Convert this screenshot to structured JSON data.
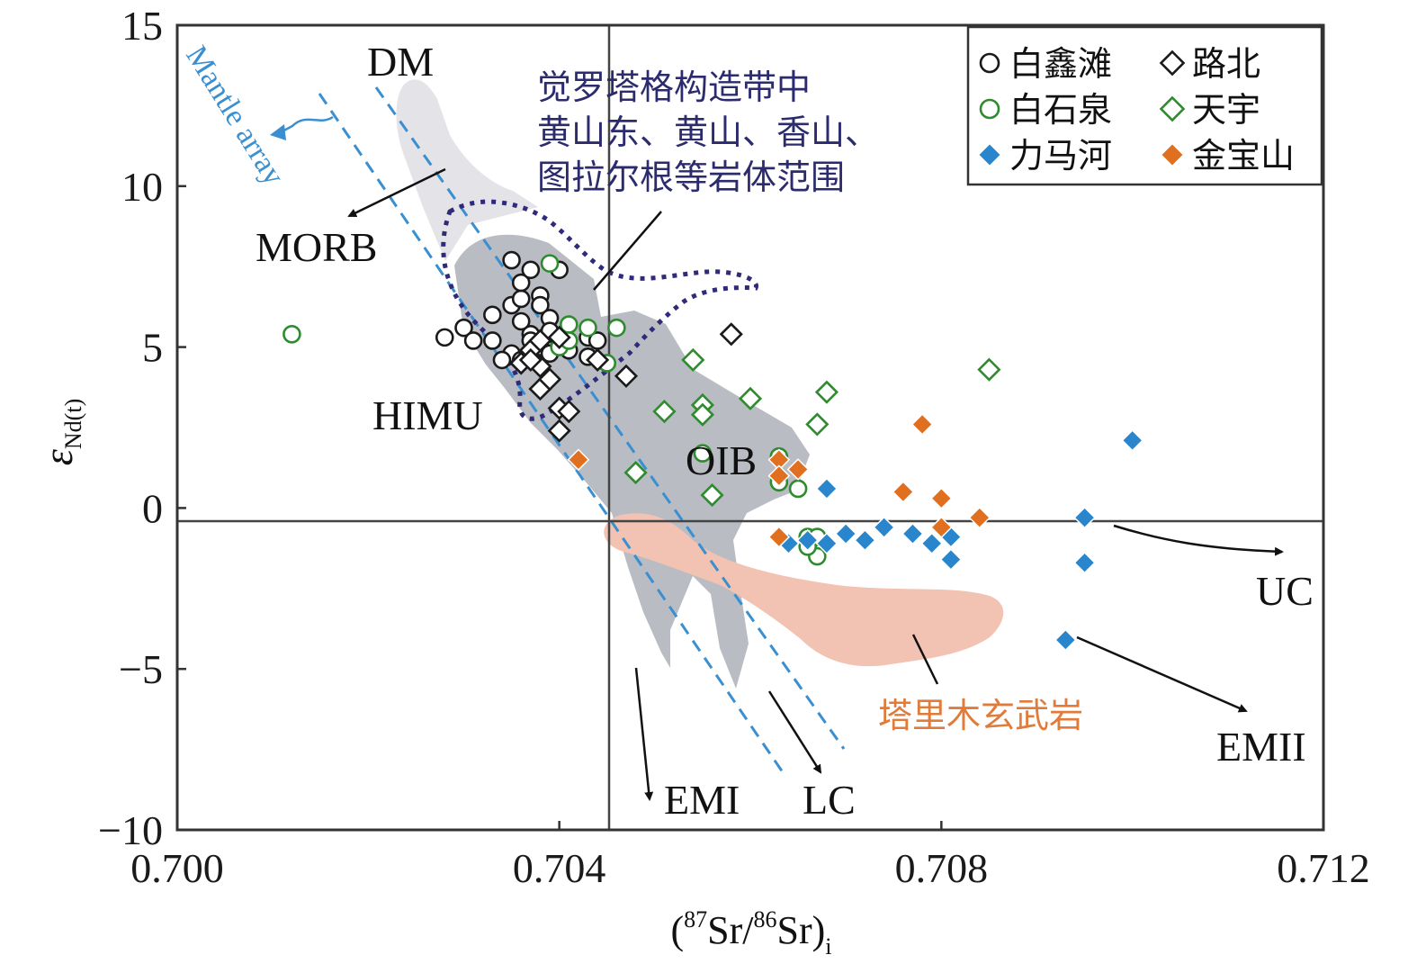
{
  "chart_data": {
    "type": "scatter",
    "xlabel": {
      "open": "(",
      "sup1": "87",
      "mid": "Sr/",
      "sup2": "86",
      "end": "Sr)",
      "sub": "i"
    },
    "ylabel": {
      "main": "ε",
      "sub": "Nd(t)"
    },
    "xlim": [
      0.7,
      0.712
    ],
    "ylim": [
      -10,
      15
    ],
    "x_ticks": [
      {
        "value": 0.7,
        "label": "0.700"
      },
      {
        "value": 0.704,
        "label": "0.704"
      },
      {
        "value": 0.708,
        "label": "0.708"
      },
      {
        "value": 0.712,
        "label": "0.712"
      }
    ],
    "y_ticks": [
      {
        "value": 15,
        "label": "15"
      },
      {
        "value": 10,
        "label": "10"
      },
      {
        "value": 5,
        "label": "5"
      },
      {
        "value": 0,
        "label": "0"
      },
      {
        "value": -5,
        "label": "−5"
      },
      {
        "value": -10,
        "label": "−10"
      }
    ],
    "reference_lines": {
      "x": 0.7045,
      "y": 0
    },
    "legend_position": "top-right",
    "series": [
      {
        "name": "白鑫滩",
        "marker": "circle",
        "filled": false,
        "color": "#1a1a1a",
        "points": [
          [
            0.7028,
            5.3
          ],
          [
            0.703,
            5.6
          ],
          [
            0.7031,
            5.2
          ],
          [
            0.7033,
            6.0
          ],
          [
            0.7033,
            5.2
          ],
          [
            0.7035,
            7.7
          ],
          [
            0.7035,
            6.3
          ],
          [
            0.7036,
            6.5
          ],
          [
            0.7036,
            7.0
          ],
          [
            0.7037,
            7.4
          ],
          [
            0.7037,
            5.4
          ],
          [
            0.7035,
            4.8
          ],
          [
            0.7036,
            4.6
          ],
          [
            0.7038,
            6.6
          ],
          [
            0.7038,
            6.3
          ],
          [
            0.7039,
            5.9
          ],
          [
            0.7037,
            5.2
          ],
          [
            0.7038,
            5.0
          ],
          [
            0.7039,
            5.5
          ],
          [
            0.704,
            7.4
          ],
          [
            0.704,
            5.2
          ],
          [
            0.7041,
            4.9
          ],
          [
            0.7043,
            5.3
          ],
          [
            0.7043,
            4.7
          ],
          [
            0.7044,
            5.2
          ],
          [
            0.7034,
            4.6
          ],
          [
            0.7036,
            5.8
          ],
          [
            0.7039,
            4.8
          ]
        ]
      },
      {
        "name": "白石泉",
        "marker": "circle",
        "filled": false,
        "color": "#2e8b2e",
        "points": [
          [
            0.7012,
            5.4
          ],
          [
            0.7039,
            7.6
          ],
          [
            0.7041,
            5.7
          ],
          [
            0.7043,
            5.6
          ],
          [
            0.7045,
            4.5
          ],
          [
            0.7046,
            5.6
          ],
          [
            0.704,
            5.0
          ],
          [
            0.7041,
            5.2
          ],
          [
            0.7055,
            1.7
          ],
          [
            0.7063,
            1.6
          ],
          [
            0.7063,
            0.8
          ],
          [
            0.7065,
            0.6
          ],
          [
            0.7066,
            -0.9
          ],
          [
            0.7067,
            -1.5
          ],
          [
            0.7067,
            -0.9
          ],
          [
            0.7066,
            -1.2
          ]
        ]
      },
      {
        "name": "力马河",
        "marker": "diamond",
        "filled": true,
        "color": "#2a86cc",
        "points": [
          [
            0.7068,
            0.6
          ],
          [
            0.7064,
            -1.1
          ],
          [
            0.7066,
            -1.0
          ],
          [
            0.7068,
            -1.1
          ],
          [
            0.707,
            -0.8
          ],
          [
            0.7072,
            -1.0
          ],
          [
            0.7074,
            -0.6
          ],
          [
            0.7077,
            -0.8
          ],
          [
            0.7079,
            -1.1
          ],
          [
            0.7081,
            -1.6
          ],
          [
            0.7081,
            -0.9
          ],
          [
            0.7095,
            -0.3
          ],
          [
            0.7095,
            -1.7
          ],
          [
            0.7093,
            -4.1
          ],
          [
            0.71,
            2.1
          ]
        ]
      },
      {
        "name": "路北",
        "marker": "diamond",
        "filled": false,
        "color": "#1a1a1a",
        "points": [
          [
            0.7036,
            4.5
          ],
          [
            0.7037,
            4.9
          ],
          [
            0.7038,
            4.4
          ],
          [
            0.7038,
            3.7
          ],
          [
            0.7039,
            4.0
          ],
          [
            0.704,
            3.1
          ],
          [
            0.704,
            2.4
          ],
          [
            0.7041,
            3.0
          ],
          [
            0.704,
            5.3
          ],
          [
            0.7038,
            5.2
          ],
          [
            0.7037,
            4.6
          ],
          [
            0.7044,
            4.6
          ],
          [
            0.7047,
            4.1
          ],
          [
            0.7058,
            5.4
          ]
        ]
      },
      {
        "name": "天宇",
        "marker": "diamond",
        "filled": false,
        "color": "#2e8b2e",
        "points": [
          [
            0.7051,
            3.0
          ],
          [
            0.7054,
            4.6
          ],
          [
            0.7055,
            3.2
          ],
          [
            0.7055,
            2.9
          ],
          [
            0.706,
            3.4
          ],
          [
            0.7068,
            3.6
          ],
          [
            0.7067,
            2.6
          ],
          [
            0.7048,
            1.1
          ],
          [
            0.7056,
            0.4
          ],
          [
            0.7085,
            4.3
          ]
        ]
      },
      {
        "name": "金宝山",
        "marker": "diamond",
        "filled": true,
        "color": "#e07020",
        "points": [
          [
            0.7042,
            1.5
          ],
          [
            0.7063,
            1.5
          ],
          [
            0.7063,
            1.0
          ],
          [
            0.7065,
            1.2
          ],
          [
            0.7063,
            -0.9
          ],
          [
            0.7076,
            0.5
          ],
          [
            0.7078,
            2.6
          ],
          [
            0.708,
            0.3
          ],
          [
            0.708,
            -0.6
          ],
          [
            0.7084,
            -0.3
          ]
        ]
      }
    ],
    "field_labels": [
      "DM",
      "MORB",
      "HIMU",
      "OIB",
      "UC",
      "EMI",
      "LC",
      "EMII"
    ],
    "mantle_array_label": "Mantle array",
    "annotations": [
      {
        "name": "orogenic-belt-range",
        "lines": [
          "觉罗塔格构造带中",
          "黄山东、黄山、香山、",
          "图拉尔根等岩体范围"
        ],
        "color": "#2b2b6e"
      },
      {
        "name": "tarim-basalt",
        "lines": [
          "塔里木玄武岩"
        ],
        "color": "#e07b3a"
      }
    ],
    "colors": {
      "light_field": "#e4e4e8",
      "dark_field": "#b9bcc3",
      "tarim_field": "#f2c2b2",
      "mantle_line": "#3a8fd0",
      "dotted_outline": "#2f2a7a"
    }
  }
}
